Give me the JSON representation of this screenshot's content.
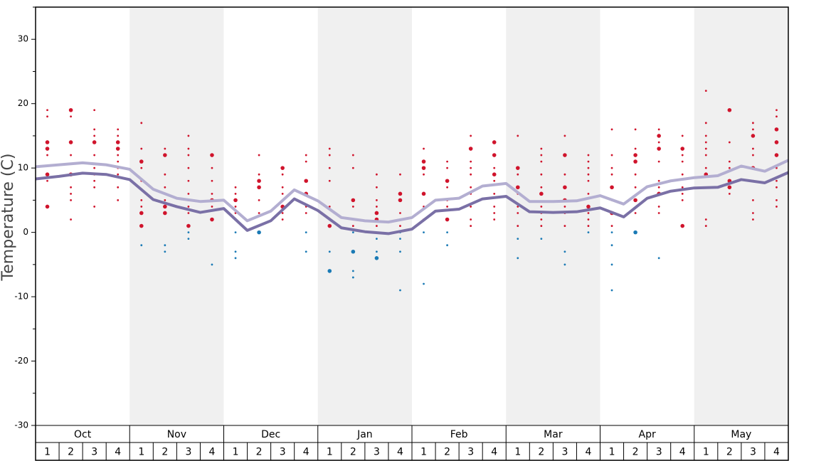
{
  "chart_data": {
    "type": "line",
    "ylabel": "Temperature (C)",
    "ylim": [
      -30,
      35
    ],
    "yticks": [
      -30,
      -20,
      -10,
      0,
      10,
      20,
      30
    ],
    "minor_yticks": [
      -25,
      -15,
      -5,
      5,
      15,
      25,
      35
    ],
    "months": [
      "Oct",
      "Nov",
      "Dec",
      "Jan",
      "Feb",
      "Mar",
      "Apr",
      "May"
    ],
    "weeks": [
      "1",
      "2",
      "3",
      "4"
    ],
    "shaded_months": [
      false,
      true,
      false,
      true,
      false,
      true,
      false,
      true
    ],
    "shade_color": "#f0f0f0",
    "xlim": [
      0,
      32
    ],
    "x": [
      0,
      1,
      2,
      3,
      4,
      5,
      6,
      7,
      8,
      9,
      10,
      11,
      12,
      13,
      14,
      15,
      16,
      17,
      18,
      19,
      20,
      21,
      22,
      23,
      24,
      25,
      26,
      27,
      28,
      29,
      30,
      31,
      32
    ],
    "series": [
      {
        "color": "#b3aed1",
        "values": [
          10.2,
          10.5,
          10.8,
          10.5,
          9.8,
          6.7,
          5.3,
          4.8,
          5.0,
          1.8,
          3.3,
          6.6,
          4.9,
          2.3,
          1.8,
          1.6,
          2.3,
          5.0,
          5.3,
          7.2,
          7.6,
          4.8,
          4.8,
          4.9,
          5.7,
          4.4,
          7.1,
          8.0,
          8.5,
          8.8,
          10.3,
          9.5,
          11.2
        ]
      },
      {
        "color": "#7a70a6",
        "values": [
          8.3,
          8.7,
          9.2,
          9.0,
          8.2,
          5.1,
          4.0,
          3.1,
          3.7,
          0.3,
          1.8,
          5.2,
          3.4,
          0.7,
          0.1,
          -0.2,
          0.5,
          3.3,
          3.6,
          5.2,
          5.6,
          3.2,
          3.1,
          3.2,
          3.8,
          2.4,
          5.3,
          6.4,
          6.9,
          7.0,
          8.2,
          7.7,
          9.3
        ]
      }
    ],
    "warm_color": "#d0142c",
    "cold_color": "#1a7ab5",
    "dot_columns": [
      {
        "values": [
          19,
          18,
          14,
          13,
          12,
          9,
          8,
          4
        ],
        "sizes": [
          1,
          1,
          2,
          2,
          1,
          2,
          1,
          2
        ]
      },
      {
        "values": [
          19,
          18,
          14,
          12,
          9,
          7,
          6,
          5,
          2
        ],
        "sizes": [
          2,
          1,
          2,
          1,
          2,
          1,
          1,
          1,
          1
        ]
      },
      {
        "values": [
          19,
          16,
          15,
          14,
          12,
          10,
          9,
          8,
          7,
          4
        ],
        "sizes": [
          1,
          1,
          1,
          2,
          1,
          1,
          1,
          1,
          1,
          1
        ]
      },
      {
        "values": [
          16,
          15,
          14,
          13,
          12,
          11,
          10,
          9,
          7,
          5
        ],
        "sizes": [
          1,
          1,
          2,
          2,
          1,
          1,
          1,
          1,
          1,
          1
        ]
      },
      {
        "values": [
          17,
          13,
          11,
          10,
          8,
          5,
          4,
          3,
          1,
          -2
        ],
        "sizes": [
          1,
          1,
          2,
          1,
          1,
          1,
          1,
          2,
          2,
          1
        ]
      },
      {
        "values": [
          13,
          12,
          9,
          7,
          5,
          4,
          3,
          -2,
          -3
        ],
        "sizes": [
          1,
          2,
          1,
          1,
          1,
          2,
          2,
          1,
          1
        ]
      },
      {
        "values": [
          15,
          13,
          12,
          10,
          8,
          6,
          5,
          4,
          3,
          1,
          0,
          -1
        ],
        "sizes": [
          1,
          1,
          1,
          1,
          1,
          1,
          1,
          1,
          1,
          2,
          1,
          1
        ]
      },
      {
        "values": [
          12,
          10,
          8,
          6,
          5,
          4,
          2,
          -5
        ],
        "sizes": [
          2,
          1,
          1,
          1,
          2,
          1,
          2,
          1
        ]
      },
      {
        "values": [
          7,
          6,
          5,
          4,
          3,
          2,
          0,
          -3,
          -4
        ],
        "sizes": [
          1,
          1,
          2,
          1,
          1,
          1,
          1,
          1,
          1
        ]
      },
      {
        "values": [
          12,
          9,
          8,
          7,
          5,
          3,
          0
        ],
        "sizes": [
          1,
          1,
          2,
          2,
          1,
          1,
          2
        ]
      },
      {
        "values": [
          10,
          9,
          7,
          6,
          5,
          4,
          3,
          2
        ],
        "sizes": [
          2,
          1,
          1,
          1,
          1,
          2,
          1,
          1
        ]
      },
      {
        "values": [
          12,
          11,
          8,
          6,
          4,
          3,
          0,
          -3
        ],
        "sizes": [
          1,
          1,
          2,
          2,
          1,
          1,
          1,
          1
        ]
      },
      {
        "values": [
          13,
          12,
          10,
          8,
          4,
          2,
          1,
          -3,
          -6
        ],
        "sizes": [
          1,
          1,
          1,
          1,
          1,
          1,
          2,
          1,
          2
        ]
      },
      {
        "values": [
          12,
          10,
          5,
          4,
          2,
          1,
          0,
          -3,
          -6,
          -7
        ],
        "sizes": [
          1,
          1,
          2,
          1,
          1,
          1,
          1,
          2,
          1,
          1
        ]
      },
      {
        "values": [
          9,
          7,
          5,
          4,
          3,
          2,
          1,
          -1,
          -3,
          -4
        ],
        "sizes": [
          1,
          1,
          1,
          1,
          2,
          2,
          1,
          1,
          1,
          2
        ]
      },
      {
        "values": [
          9,
          6,
          5,
          3,
          2,
          1,
          0,
          -1,
          -3,
          -9
        ],
        "sizes": [
          1,
          2,
          2,
          1,
          1,
          1,
          1,
          1,
          1,
          1
        ]
      },
      {
        "values": [
          13,
          11,
          10,
          9,
          6,
          4,
          2,
          0,
          -8
        ],
        "sizes": [
          1,
          2,
          2,
          1,
          2,
          1,
          1,
          1,
          1
        ]
      },
      {
        "values": [
          11,
          10,
          8,
          7,
          5,
          4,
          2,
          0,
          -2
        ],
        "sizes": [
          1,
          1,
          2,
          1,
          1,
          1,
          2,
          1,
          1
        ]
      },
      {
        "values": [
          15,
          13,
          11,
          10,
          9,
          7,
          6,
          4,
          2,
          1
        ],
        "sizes": [
          1,
          2,
          1,
          1,
          1,
          1,
          1,
          1,
          1,
          1
        ]
      },
      {
        "values": [
          14,
          12,
          10,
          9,
          8,
          6,
          4,
          3,
          2
        ],
        "sizes": [
          2,
          2,
          1,
          2,
          1,
          1,
          1,
          1,
          1
        ]
      },
      {
        "values": [
          15,
          10,
          9,
          7,
          6,
          4,
          3,
          1,
          -1,
          -4
        ],
        "sizes": [
          1,
          2,
          1,
          2,
          1,
          1,
          1,
          1,
          1,
          1
        ]
      },
      {
        "values": [
          13,
          12,
          11,
          9,
          7,
          6,
          4,
          3,
          2,
          1,
          -1
        ],
        "sizes": [
          1,
          1,
          1,
          1,
          1,
          2,
          1,
          1,
          1,
          1,
          1
        ]
      },
      {
        "values": [
          15,
          12,
          9,
          7,
          5,
          4,
          3,
          1,
          -3,
          -5
        ],
        "sizes": [
          1,
          2,
          1,
          2,
          2,
          1,
          1,
          1,
          1,
          1
        ]
      },
      {
        "values": [
          12,
          11,
          10,
          9,
          8,
          6,
          4,
          3,
          2,
          1,
          0
        ],
        "sizes": [
          1,
          1,
          1,
          1,
          1,
          1,
          2,
          1,
          1,
          1,
          1
        ]
      },
      {
        "values": [
          16,
          12,
          10,
          9,
          7,
          5,
          3,
          1,
          0,
          -2,
          -5,
          -9
        ],
        "sizes": [
          1,
          1,
          1,
          1,
          2,
          1,
          2,
          1,
          1,
          1,
          1,
          1
        ]
      },
      {
        "values": [
          16,
          13,
          12,
          11,
          9,
          7,
          5,
          3,
          0
        ],
        "sizes": [
          1,
          1,
          2,
          2,
          1,
          1,
          2,
          1,
          2
        ]
      },
      {
        "values": [
          16,
          15,
          14,
          13,
          11,
          8,
          7,
          6,
          4,
          3,
          -4
        ],
        "sizes": [
          1,
          2,
          1,
          2,
          1,
          1,
          1,
          2,
          1,
          1,
          1
        ]
      },
      {
        "values": [
          15,
          13,
          12,
          11,
          9,
          7,
          6,
          5,
          1
        ],
        "sizes": [
          1,
          2,
          1,
          1,
          1,
          1,
          1,
          1,
          2
        ]
      },
      {
        "values": [
          22,
          17,
          15,
          14,
          13,
          12,
          10,
          9,
          2,
          1
        ],
        "sizes": [
          1,
          1,
          1,
          1,
          1,
          1,
          1,
          2,
          1,
          1
        ]
      },
      {
        "values": [
          19,
          14,
          11,
          10,
          8,
          7,
          6
        ],
        "sizes": [
          2,
          1,
          1,
          1,
          2,
          2,
          1
        ]
      },
      {
        "values": [
          17,
          16,
          15,
          13,
          12,
          10,
          8,
          5,
          3,
          2
        ],
        "sizes": [
          1,
          1,
          2,
          1,
          1,
          2,
          1,
          1,
          1,
          1
        ]
      },
      {
        "values": [
          19,
          18,
          16,
          14,
          12,
          10,
          8,
          7,
          5,
          4
        ],
        "sizes": [
          1,
          1,
          2,
          2,
          2,
          1,
          1,
          1,
          1,
          1
        ]
      }
    ]
  }
}
